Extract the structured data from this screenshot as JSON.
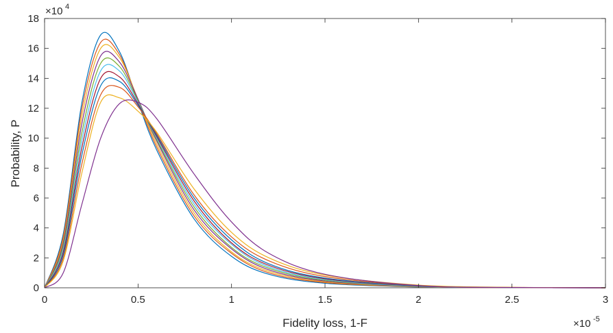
{
  "chart_data": {
    "type": "line",
    "title": "",
    "xlabel": "Fidelity loss, 1-F",
    "ylabel": "Probability, P",
    "x_exponent_label": "×10",
    "x_exponent": "-5",
    "y_exponent_label": "×10",
    "y_exponent": "4",
    "x_scale": 1e-05,
    "y_scale": 10000,
    "xlim": [
      0,
      3
    ],
    "ylim": [
      0,
      18
    ],
    "x_ticks": [
      0,
      0.5,
      1,
      1.5,
      2,
      2.5,
      3
    ],
    "x_tick_labels": [
      "0",
      "0.5",
      "1",
      "1.5",
      "2",
      "2.5",
      "3"
    ],
    "y_ticks": [
      0,
      2,
      4,
      6,
      8,
      10,
      12,
      14,
      16,
      18
    ],
    "y_tick_labels": [
      "0",
      "2",
      "4",
      "6",
      "8",
      "10",
      "12",
      "14",
      "16",
      "18"
    ],
    "grid": false,
    "legend": "none",
    "note": "Many overlapping probability density curves (Monte Carlo realizations); each series is a skewed peaked curve.",
    "colors": [
      "#0072BD",
      "#D95319",
      "#EDB120",
      "#7E2F8E",
      "#77AC30",
      "#4DBEEE",
      "#A2142F"
    ],
    "series": [
      {
        "x": [
          0,
          0.1,
          0.2,
          0.3,
          0.4,
          0.5,
          0.6,
          0.8,
          1.0,
          1.2,
          1.5,
          2.0,
          2.5,
          3.0
        ],
        "values": [
          0,
          3.6,
          12.4,
          16.9,
          15.8,
          12.4,
          9.2,
          4.6,
          2.1,
          0.9,
          0.3,
          0.05,
          0.01,
          0
        ]
      },
      {
        "x": [
          0,
          0.1,
          0.2,
          0.3,
          0.4,
          0.5,
          0.6,
          0.8,
          1.0,
          1.2,
          1.5,
          2.0,
          2.5,
          3.0
        ],
        "values": [
          0,
          3.4,
          12.0,
          16.4,
          15.6,
          12.5,
          9.4,
          4.8,
          2.3,
          1.0,
          0.35,
          0.06,
          0.01,
          0
        ]
      },
      {
        "x": [
          0,
          0.1,
          0.2,
          0.3,
          0.4,
          0.5,
          0.6,
          0.8,
          1.0,
          1.2,
          1.5,
          2.0,
          2.5,
          3.0
        ],
        "values": [
          0,
          3.2,
          11.5,
          16.0,
          15.4,
          12.6,
          9.6,
          5.0,
          2.4,
          1.1,
          0.4,
          0.07,
          0.01,
          0
        ]
      },
      {
        "x": [
          0,
          0.1,
          0.2,
          0.3,
          0.4,
          0.5,
          0.6,
          0.8,
          1.0,
          1.2,
          1.5,
          2.0,
          2.5,
          3.0
        ],
        "values": [
          0,
          3.0,
          11.0,
          15.5,
          15.1,
          12.6,
          9.8,
          5.2,
          2.6,
          1.2,
          0.45,
          0.08,
          0.01,
          0
        ]
      },
      {
        "x": [
          0,
          0.1,
          0.2,
          0.3,
          0.4,
          0.5,
          0.6,
          0.8,
          1.0,
          1.2,
          1.5,
          2.0,
          2.5,
          3.0
        ],
        "values": [
          0,
          2.8,
          10.4,
          15.0,
          14.8,
          12.5,
          9.9,
          5.4,
          2.7,
          1.3,
          0.5,
          0.09,
          0.02,
          0
        ]
      },
      {
        "x": [
          0,
          0.1,
          0.2,
          0.3,
          0.4,
          0.5,
          0.6,
          0.8,
          1.0,
          1.2,
          1.5,
          2.0,
          2.5,
          3.0
        ],
        "values": [
          0,
          2.6,
          9.9,
          14.5,
          14.5,
          12.4,
          10.0,
          5.6,
          2.9,
          1.4,
          0.55,
          0.1,
          0.02,
          0
        ]
      },
      {
        "x": [
          0,
          0.1,
          0.2,
          0.3,
          0.4,
          0.5,
          0.6,
          0.8,
          1.0,
          1.2,
          1.5,
          2.0,
          2.5,
          3.0
        ],
        "values": [
          0,
          2.4,
          9.4,
          14.0,
          14.1,
          12.3,
          10.1,
          5.8,
          3.0,
          1.5,
          0.6,
          0.12,
          0.02,
          0
        ]
      },
      {
        "x": [
          0,
          0.1,
          0.2,
          0.3,
          0.4,
          0.5,
          0.6,
          0.8,
          1.0,
          1.2,
          1.5,
          2.0,
          2.5,
          3.0
        ],
        "values": [
          0,
          2.2,
          8.9,
          13.5,
          13.8,
          12.2,
          10.2,
          6.0,
          3.2,
          1.6,
          0.65,
          0.13,
          0.02,
          0
        ]
      },
      {
        "x": [
          0,
          0.1,
          0.2,
          0.3,
          0.4,
          0.5,
          0.6,
          0.8,
          1.0,
          1.2,
          1.5,
          2.0,
          2.5,
          3.0
        ],
        "values": [
          0,
          2.0,
          8.3,
          12.9,
          13.4,
          12.1,
          10.3,
          6.2,
          3.4,
          1.8,
          0.75,
          0.15,
          0.03,
          0
        ]
      },
      {
        "x": [
          0,
          0.1,
          0.2,
          0.3,
          0.4,
          0.5,
          0.6,
          0.8,
          1.0,
          1.2,
          1.5,
          2.0,
          2.5,
          3.0
        ],
        "values": [
          0,
          1.8,
          7.7,
          12.4,
          12.7,
          11.8,
          10.4,
          6.6,
          3.7,
          2.0,
          0.85,
          0.18,
          0.03,
          0
        ]
      },
      {
        "x": [
          0,
          0.1,
          0.2,
          0.3,
          0.4,
          0.5,
          0.6,
          0.8,
          1.0,
          1.2,
          1.5,
          2.0,
          2.5,
          3.0
        ],
        "values": [
          0,
          1.0,
          5.6,
          10.0,
          12.3,
          12.4,
          11.3,
          7.6,
          4.4,
          2.3,
          0.9,
          0.15,
          0.02,
          0
        ]
      }
    ]
  }
}
